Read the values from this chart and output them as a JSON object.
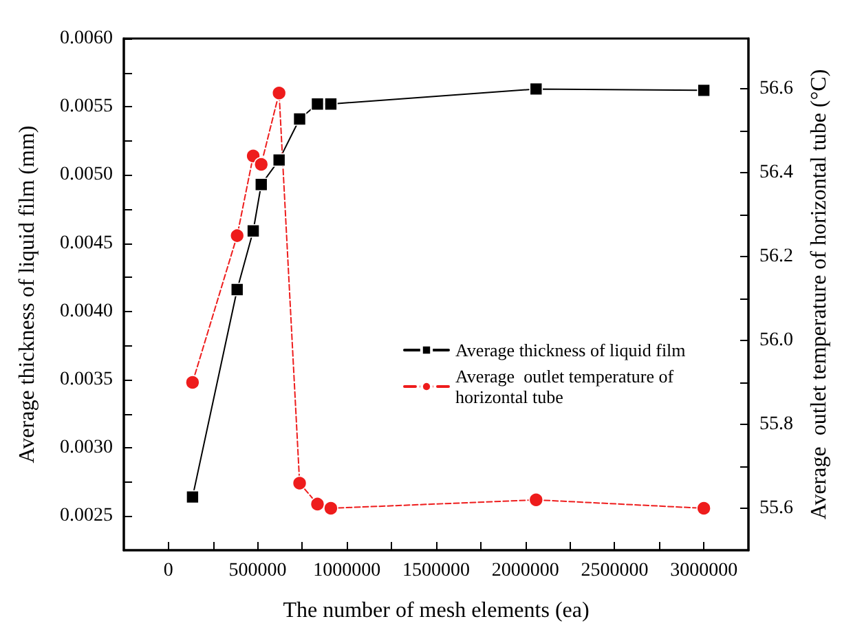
{
  "chart_data": {
    "type": "line",
    "xlabel": "The number of mesh elements (ea)",
    "ylabel": "Average thickness of liquid film (mm)",
    "y2label": "Average  outlet temperature of horizontal tube (°C)",
    "x": [
      135000,
      385000,
      475000,
      520000,
      620000,
      735000,
      835000,
      910000,
      2060000,
      3000000
    ],
    "series": [
      {
        "name": "Average thickness of liquid film",
        "color": "#000000",
        "marker": "square",
        "line_style": "solid",
        "values": [
          0.00264,
          0.00416,
          0.00459,
          0.00493,
          0.00511,
          0.00541,
          0.00552,
          0.00552,
          0.00563,
          0.00562
        ]
      },
      {
        "name": "Average  outlet temperature of horizontal tube",
        "color": "#ee1c1c",
        "marker": "circle",
        "line_style": "dashed",
        "axis": "y2",
        "values": [
          55.9,
          56.25,
          56.44,
          56.42,
          56.59,
          55.66,
          55.61,
          55.6,
          55.62,
          55.6
        ]
      }
    ],
    "xlim": [
      -250000,
      3250000
    ],
    "xticks": [
      0,
      {
        "value": 250000,
        "label": null
      },
      500000,
      {
        "value": 750000,
        "label": null
      },
      1000000,
      {
        "value": 1250000,
        "label": null
      },
      1500000,
      {
        "value": 1750000,
        "label": null
      },
      2000000,
      {
        "value": 2250000,
        "label": null
      },
      2500000,
      {
        "value": 2750000,
        "label": null
      },
      3000000
    ],
    "ylim": [
      0.00225,
      0.006
    ],
    "yticks": [
      {
        "value": 0.0025,
        "label": "0.0025"
      },
      {
        "value": 0.00275,
        "label": null
      },
      {
        "value": 0.003,
        "label": "0.0030"
      },
      {
        "value": 0.00325,
        "label": null
      },
      {
        "value": 0.0035,
        "label": "0.0035"
      },
      {
        "value": 0.00375,
        "label": null
      },
      {
        "value": 0.004,
        "label": "0.0040"
      },
      {
        "value": 0.00425,
        "label": null
      },
      {
        "value": 0.0045,
        "label": "0.0045"
      },
      {
        "value": 0.00475,
        "label": null
      },
      {
        "value": 0.005,
        "label": "0.0050"
      },
      {
        "value": 0.00525,
        "label": null
      },
      {
        "value": 0.0055,
        "label": "0.0055"
      },
      {
        "value": 0.00575,
        "label": null
      },
      {
        "value": 0.006,
        "label": "0.0060"
      }
    ],
    "y2lim": [
      55.5,
      56.72
    ],
    "y2ticks": [
      {
        "value": 55.6,
        "label": "55.6"
      },
      {
        "value": 55.7,
        "label": null
      },
      {
        "value": 55.8,
        "label": "55.8"
      },
      {
        "value": 55.9,
        "label": null
      },
      {
        "value": 56.0,
        "label": "56.0"
      },
      {
        "value": 56.1,
        "label": null
      },
      {
        "value": 56.2,
        "label": "56.2"
      },
      {
        "value": 56.3,
        "label": null
      },
      {
        "value": 56.4,
        "label": "56.4"
      },
      {
        "value": 56.5,
        "label": null
      },
      {
        "value": 56.6,
        "label": "56.6"
      }
    ],
    "grid": false,
    "legend": "right"
  }
}
